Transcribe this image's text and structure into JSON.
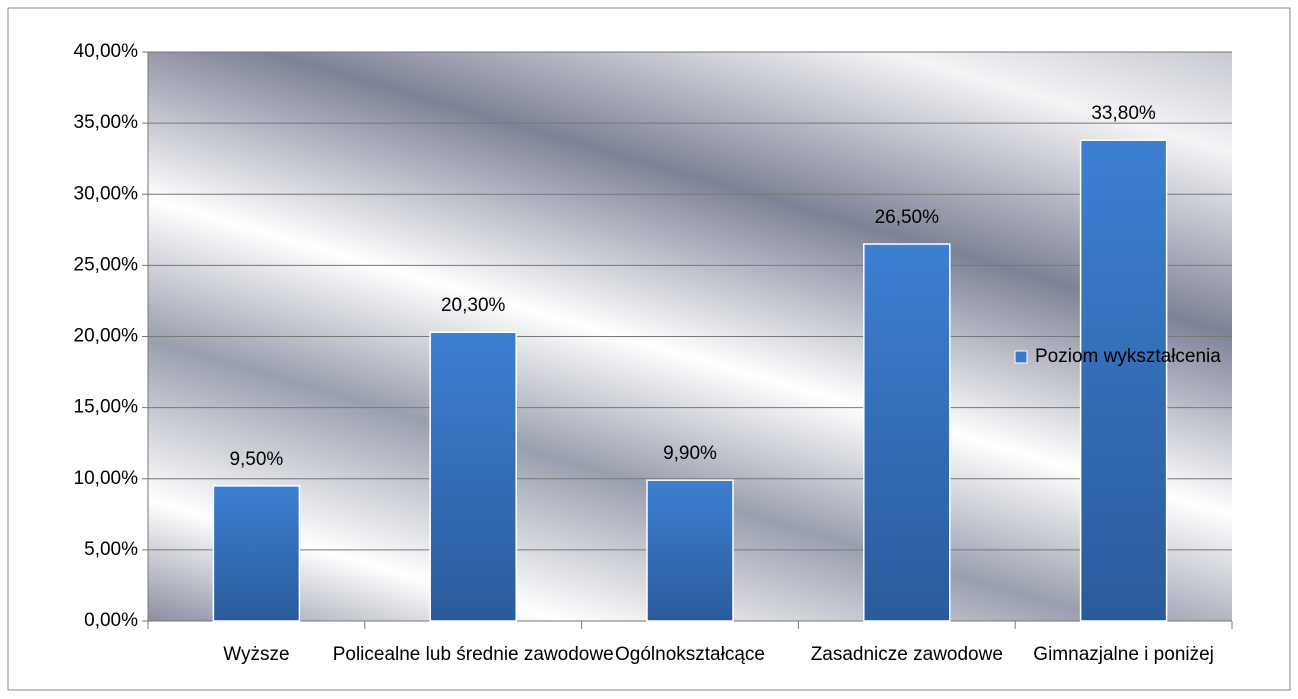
{
  "chart_data": {
    "type": "bar",
    "categories": [
      "Wyższe",
      "Policealne lub średnie zawodowe",
      "Ogólnokształcące",
      "Zasadnicze zawodowe",
      "Gimnazjalne i poniżej"
    ],
    "series": [
      {
        "name": "Poziom wykształcenia",
        "color": "#3a78c9",
        "values": [
          9.5,
          20.3,
          9.9,
          26.5,
          33.8
        ],
        "value_labels": [
          "9,50%",
          "20,30%",
          "9,90%",
          "26,50%",
          "33,80%"
        ]
      }
    ],
    "ylim": [
      0,
      40
    ],
    "yticks": [
      {
        "value": 0,
        "label": "0,00%"
      },
      {
        "value": 5,
        "label": "5,00%"
      },
      {
        "value": 10,
        "label": "10,00%"
      },
      {
        "value": 15,
        "label": "15,00%"
      },
      {
        "value": 20,
        "label": "20,00%"
      },
      {
        "value": 25,
        "label": "25,00%"
      },
      {
        "value": 30,
        "label": "30,00%"
      },
      {
        "value": 35,
        "label": "35,00%"
      },
      {
        "value": 40,
        "label": "40,00%"
      }
    ],
    "grid": true,
    "legend": "right"
  }
}
